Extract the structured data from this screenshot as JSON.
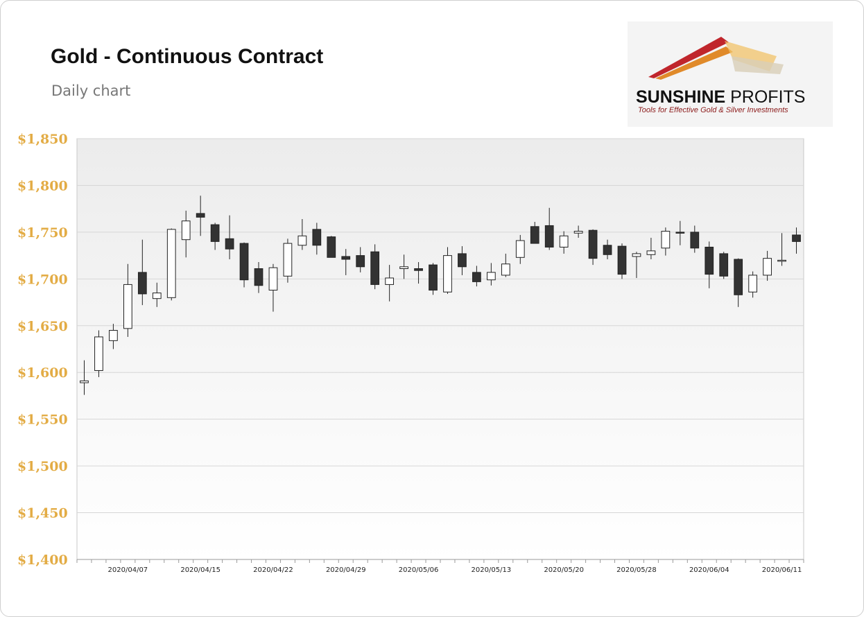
{
  "header": {
    "title": "Gold - Continuous Contract",
    "subtitle": "Daily chart"
  },
  "logo": {
    "brand_bold": "SUNSHINE",
    "brand_light": " PROFITS",
    "tagline": "Tools for Effective Gold & Silver Investments",
    "colors": [
      "#c0262c",
      "#e08a2a",
      "#f2c36a",
      "#d8ceb8"
    ]
  },
  "colors": {
    "axis_label": "#e3ac45",
    "up_body": "#ffffff",
    "down_body": "#333333",
    "wick": "#222222",
    "grid": "#d6d6d6"
  },
  "chart_data": {
    "type": "candlestick",
    "title": "Gold - Continuous Contract",
    "subtitle": "Daily chart",
    "ylim": [
      1400,
      1850
    ],
    "yticks": [
      1400,
      1450,
      1500,
      1550,
      1600,
      1650,
      1700,
      1750,
      1800,
      1850
    ],
    "ytick_labels": [
      "$1,400",
      "$1,450",
      "$1,500",
      "$1,550",
      "$1,600",
      "$1,650",
      "$1,700",
      "$1,750",
      "$1,800",
      "$1,850"
    ],
    "grid": true,
    "x_label_indices": [
      3,
      8,
      13,
      18,
      23,
      28,
      33,
      38,
      43,
      48
    ],
    "x_labels": [
      "2020/04/07",
      "2020/04/15",
      "2020/04/22",
      "2020/04/29",
      "2020/05/06",
      "2020/05/13",
      "2020/05/20",
      "2020/05/28",
      "2020/06/04",
      "2020/06/11"
    ],
    "series": [
      {
        "open": [
          1589,
          1602,
          1634,
          1647,
          1707,
          1679,
          1680,
          1742,
          1770,
          1758,
          1743,
          1738,
          1711,
          1688,
          1703,
          1736,
          1753,
          1745,
          1724,
          1725,
          1729,
          1694,
          1711,
          1711,
          1715,
          1686,
          1727,
          1707,
          1699,
          1704,
          1723,
          1756,
          1757,
          1734,
          1749,
          1752,
          1736,
          1735,
          1724,
          1726,
          1733,
          1750,
          1750,
          1734,
          1727,
          1721,
          1686,
          1704,
          1719,
          1747
        ],
        "high": [
          1613,
          1645,
          1652,
          1716,
          1742,
          1696,
          1754,
          1773,
          1789,
          1760,
          1768,
          1739,
          1718,
          1716,
          1743,
          1764,
          1760,
          1746,
          1732,
          1734,
          1737,
          1715,
          1726,
          1718,
          1717,
          1734,
          1735,
          1714,
          1717,
          1727,
          1747,
          1761,
          1776,
          1751,
          1757,
          1753,
          1742,
          1738,
          1729,
          1744,
          1755,
          1762,
          1757,
          1740,
          1729,
          1722,
          1708,
          1730,
          1749,
          1755
        ],
        "low": [
          1576,
          1595,
          1625,
          1638,
          1672,
          1670,
          1677,
          1723,
          1746,
          1731,
          1721,
          1691,
          1685,
          1665,
          1696,
          1731,
          1726,
          1723,
          1704,
          1707,
          1689,
          1676,
          1700,
          1695,
          1683,
          1684,
          1704,
          1692,
          1693,
          1702,
          1716,
          1738,
          1731,
          1727,
          1744,
          1715,
          1721,
          1700,
          1701,
          1721,
          1725,
          1736,
          1728,
          1690,
          1700,
          1670,
          1680,
          1698,
          1714,
          1727
        ],
        "close": [
          1591,
          1638,
          1645,
          1694,
          1684,
          1685,
          1753,
          1762,
          1766,
          1740,
          1732,
          1699,
          1693,
          1712,
          1738,
          1746,
          1736,
          1723,
          1721,
          1713,
          1694,
          1701,
          1713,
          1709,
          1688,
          1725,
          1713,
          1697,
          1707,
          1716,
          1741,
          1738,
          1734,
          1746,
          1751,
          1722,
          1726,
          1705,
          1727,
          1730,
          1751,
          1749,
          1733,
          1705,
          1703,
          1683,
          1704,
          1722,
          1720,
          1740
        ]
      }
    ]
  }
}
